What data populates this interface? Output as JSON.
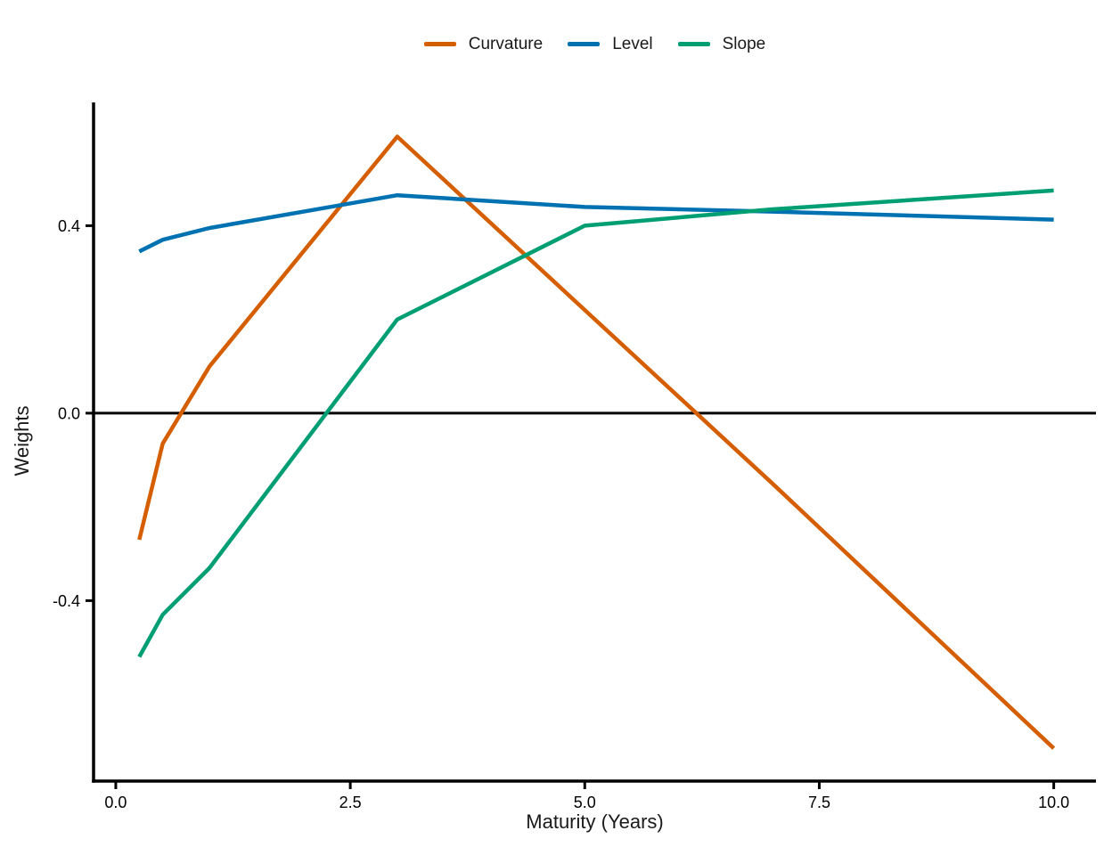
{
  "chart_data": {
    "type": "line",
    "title": "",
    "xlabel": "Maturity (Years)",
    "ylabel": "Weights",
    "x": [
      0.25,
      0.5,
      1,
      3,
      5,
      7,
      10
    ],
    "series": [
      {
        "name": "Curvature",
        "color": "#D55E00",
        "values": [
          -0.27,
          -0.065,
          0.1,
          0.59,
          0.22,
          -0.15,
          -0.715
        ]
      },
      {
        "name": "Level",
        "color": "#0072B2",
        "values": [
          0.345,
          0.37,
          0.395,
          0.465,
          0.44,
          0.43,
          0.413
        ]
      },
      {
        "name": "Slope",
        "color": "#009E73",
        "values": [
          -0.52,
          -0.43,
          -0.33,
          0.2,
          0.4,
          0.435,
          0.475
        ]
      }
    ],
    "x_ticks": {
      "values": [
        0,
        2.5,
        5,
        7.5,
        10
      ],
      "labels": [
        "0.0",
        "2.5",
        "5.0",
        "7.5",
        "10.0"
      ]
    },
    "y_ticks": {
      "values": [
        -0.4,
        0,
        0.4
      ],
      "labels": [
        "-0.4",
        "0.0",
        "0.4"
      ]
    },
    "xlim": [
      -0.237,
      10.45
    ],
    "ylim": [
      -0.785,
      0.663
    ],
    "zero_line": true,
    "grid": false,
    "legend_position": "top",
    "axis_color": "#000000",
    "text_color": "#1a1a1a"
  }
}
